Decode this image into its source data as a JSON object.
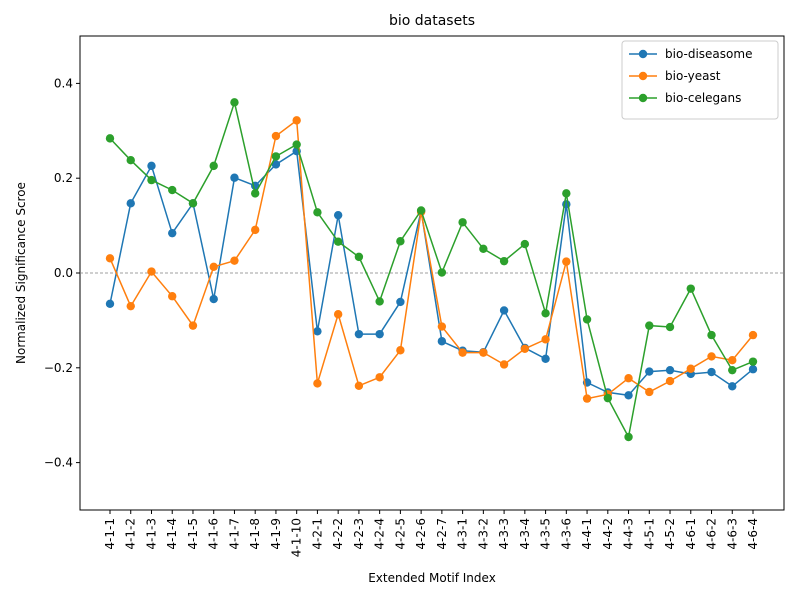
{
  "chart_data": {
    "type": "line",
    "title": "bio datasets",
    "xlabel": "Extended Motif Index",
    "ylabel": "Normalized Significance Scroe",
    "ylim": [
      -0.5,
      0.5
    ],
    "yticks": [
      -0.4,
      -0.2,
      0.0,
      0.2,
      0.4
    ],
    "ytick_labels": [
      "−0.4",
      "−0.2",
      "0.0",
      "0.2",
      "0.4"
    ],
    "grid": false,
    "reference_line": 0.0,
    "legend_position": "top-right",
    "categories": [
      "4-1-1",
      "4-1-2",
      "4-1-3",
      "4-1-4",
      "4-1-5",
      "4-1-6",
      "4-1-7",
      "4-1-8",
      "4-1-9",
      "4-1-10",
      "4-2-1",
      "4-2-2",
      "4-2-3",
      "4-2-4",
      "4-2-5",
      "4-2-6",
      "4-2-7",
      "4-3-1",
      "4-3-2",
      "4-3-3",
      "4-3-4",
      "4-3-5",
      "4-3-6",
      "4-4-1",
      "4-4-2",
      "4-4-3",
      "4-5-1",
      "4-5-2",
      "4-6-1",
      "4-6-2",
      "4-6-3",
      "4-6-4"
    ],
    "series": [
      {
        "name": "bio-diseasome",
        "color": "#1f77b4",
        "values": [
          -0.065,
          0.147,
          0.226,
          0.084,
          0.147,
          -0.055,
          0.201,
          0.184,
          0.229,
          0.257,
          -0.123,
          0.122,
          -0.129,
          -0.129,
          -0.061,
          0.131,
          -0.144,
          -0.164,
          -0.167,
          -0.079,
          -0.158,
          -0.181,
          0.145,
          -0.231,
          -0.252,
          -0.258,
          -0.208,
          -0.205,
          -0.213,
          -0.209,
          -0.239,
          -0.203
        ]
      },
      {
        "name": "bio-yeast",
        "color": "#ff7f0e",
        "values": [
          0.031,
          -0.07,
          0.003,
          -0.049,
          -0.111,
          0.013,
          0.026,
          0.091,
          0.289,
          0.322,
          -0.233,
          -0.087,
          -0.238,
          -0.22,
          -0.163,
          0.129,
          -0.113,
          -0.168,
          -0.168,
          -0.193,
          -0.16,
          -0.14,
          0.024,
          -0.265,
          -0.256,
          -0.222,
          -0.251,
          -0.228,
          -0.202,
          -0.176,
          -0.184,
          -0.131
        ]
      },
      {
        "name": "bio-celegans",
        "color": "#2ca02c",
        "values": [
          0.284,
          0.238,
          0.196,
          0.175,
          0.147,
          0.226,
          0.36,
          0.168,
          0.246,
          0.271,
          0.128,
          0.066,
          0.034,
          -0.06,
          0.067,
          0.132,
          0.001,
          0.107,
          0.051,
          0.025,
          0.061,
          -0.085,
          0.168,
          -0.098,
          -0.264,
          -0.346,
          -0.111,
          -0.114,
          -0.033,
          -0.131,
          -0.205,
          -0.187
        ]
      }
    ]
  }
}
